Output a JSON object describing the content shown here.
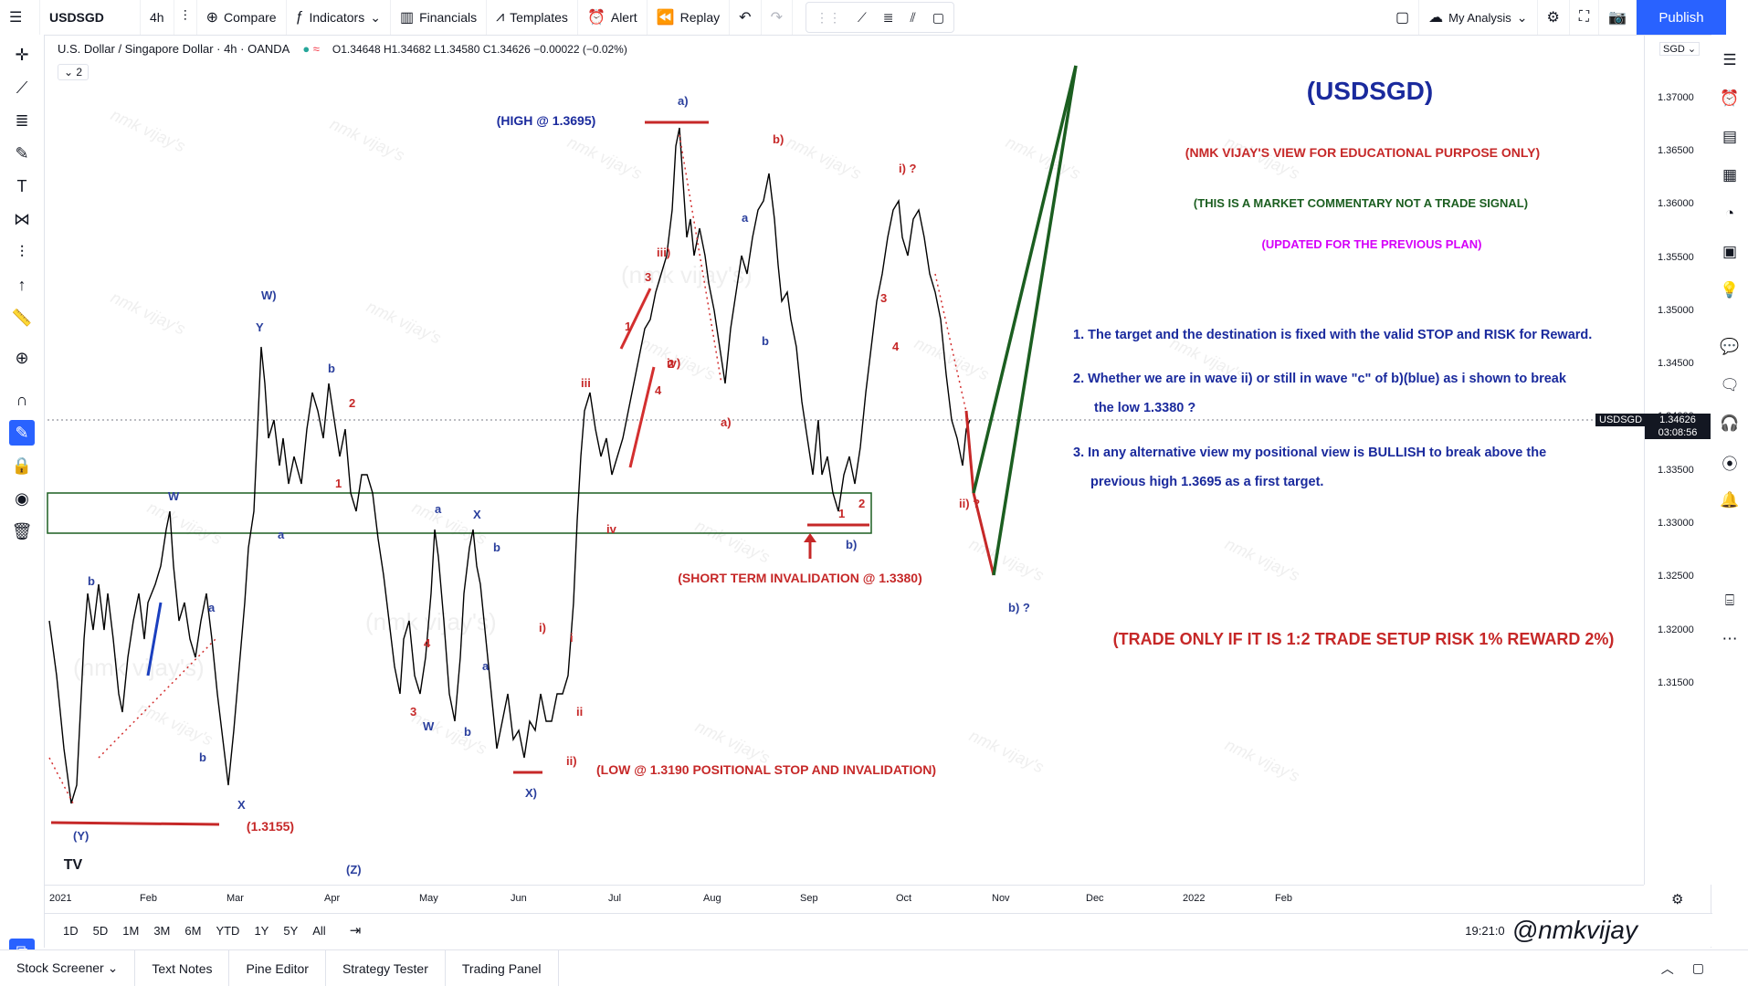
{
  "topbar": {
    "symbol": "USDSGD",
    "interval": "4h",
    "compare": "Compare",
    "indicators": "Indicators",
    "financials": "Financials",
    "templates": "Templates",
    "alert": "Alert",
    "replay": "Replay",
    "my_analysis": "My Analysis",
    "publish": "Publish"
  },
  "legend": {
    "title": "U.S. Dollar / Singapore Dollar · 4h · OANDA",
    "ohlc": "O1.34648 H1.34682 L1.34580 C1.34626 −0.00022 (−0.02%)",
    "collapse": "2"
  },
  "price_axis": {
    "currency": "SGD",
    "ticks": [
      "1.37000",
      "1.36500",
      "1.36000",
      "1.35500",
      "1.35000",
      "1.34500",
      "1.34000",
      "1.33500",
      "1.33000",
      "1.32500",
      "1.32000",
      "1.31500"
    ],
    "current_price": "1.34626",
    "countdown": "03:08:56",
    "symbol_tag": "USDSGD"
  },
  "time_axis": {
    "ticks": [
      "2021",
      "Feb",
      "Mar",
      "Apr",
      "May",
      "Jun",
      "Jul",
      "Aug",
      "Sep",
      "Oct",
      "Nov",
      "Dec",
      "2022",
      "Feb"
    ]
  },
  "bottombar": {
    "ranges": [
      "1D",
      "5D",
      "1M",
      "3M",
      "6M",
      "YTD",
      "1Y",
      "5Y",
      "All"
    ],
    "clock": "19:21:0",
    "watermark": "@nmkvijay"
  },
  "footer": {
    "tabs": [
      "Stock Screener",
      "Text Notes",
      "Pine Editor",
      "Strategy Tester",
      "Trading Panel"
    ]
  },
  "annotations": {
    "title": "(USDSGD)",
    "view": "(NMK VIJAY'S VIEW FOR EDUCATIONAL PURPOSE ONLY)",
    "commentary": "(THIS IS A MARKET COMMENTARY NOT A TRADE SIGNAL)",
    "updated": "(UPDATED FOR THE PREVIOUS PLAN)",
    "p1": "1. The target and the destination is fixed with the valid STOP and RISK for Reward.",
    "p2a": "2. Whether we are in wave ii) or still in wave \"c\" of b)(blue) as i shown to break",
    "p2b": "the low 1.3380 ?",
    "p3a": "3. In any alternative view my positional view is BULLISH to break above the",
    "p3b": "previous high 1.3695 as a first target.",
    "trade": "(TRADE ONLY IF IT IS 1:2 TRADE SETUP RISK 1% REWARD 2%)",
    "high": "(HIGH @ 1.3695)",
    "short_inv": "(SHORT TERM INVALIDATION @ 1.3380)",
    "low": "(LOW @ 1.3190 POSITIONAL STOP AND INVALIDATION)",
    "low2": "(1.3155)"
  },
  "wave_labels": [
    {
      "t": "a)",
      "c": "#2a3f9d"
    },
    {
      "t": "b)",
      "c": "#c62828"
    },
    {
      "t": "i) ?",
      "c": "#c62828"
    },
    {
      "t": "W)",
      "c": "#2a3f9d"
    },
    {
      "t": "Y",
      "c": "#2a3f9d"
    },
    {
      "t": "b",
      "c": "#2a3f9d"
    },
    {
      "t": "2",
      "c": "#c62828"
    },
    {
      "t": "1",
      "c": "#c62828"
    },
    {
      "t": "W",
      "c": "#2a3f9d"
    },
    {
      "t": "a",
      "c": "#2a3f9d"
    },
    {
      "t": "b",
      "c": "#2a3f9d"
    },
    {
      "t": "a",
      "c": "#2a3f9d"
    },
    {
      "t": "b",
      "c": "#2a3f9d"
    },
    {
      "t": "X",
      "c": "#2a3f9d"
    },
    {
      "t": "(Y)",
      "c": "#2a3f9d"
    },
    {
      "t": "(Z)",
      "c": "#2a3f9d"
    },
    {
      "t": "a",
      "c": "#2a3f9d"
    },
    {
      "t": "X",
      "c": "#2a3f9d"
    },
    {
      "t": "b",
      "c": "#2a3f9d"
    },
    {
      "t": "a",
      "c": "#2a3f9d"
    },
    {
      "t": "3",
      "c": "#c62828"
    },
    {
      "t": "W",
      "c": "#2a3f9d"
    },
    {
      "t": "b",
      "c": "#2a3f9d"
    },
    {
      "t": "X)",
      "c": "#2a3f9d"
    },
    {
      "t": "i)",
      "c": "#c62828"
    },
    {
      "t": "ii)",
      "c": "#c62828"
    },
    {
      "t": "iii",
      "c": "#c62828"
    },
    {
      "t": "iv",
      "c": "#c62828"
    },
    {
      "t": "1",
      "c": "#c62828"
    },
    {
      "t": "3",
      "c": "#c62828"
    },
    {
      "t": "4",
      "c": "#c62828"
    },
    {
      "t": "2",
      "c": "#c62828"
    },
    {
      "t": "iii)",
      "c": "#c62828"
    },
    {
      "t": "iv)",
      "c": "#c62828"
    },
    {
      "t": "a",
      "c": "#2a3f9d"
    },
    {
      "t": "b",
      "c": "#2a3f9d"
    },
    {
      "t": "a)",
      "c": "#c62828"
    },
    {
      "t": "1",
      "c": "#c62828"
    },
    {
      "t": "2",
      "c": "#c62828"
    },
    {
      "t": "b)",
      "c": "#2a3f9d"
    },
    {
      "t": "3",
      "c": "#c62828"
    },
    {
      "t": "4",
      "c": "#c62828"
    },
    {
      "t": "ii) ?",
      "c": "#c62828"
    },
    {
      "t": "b) ?",
      "c": "#2a3f9d"
    },
    {
      "t": "i",
      "c": "#c62828"
    },
    {
      "t": "ii",
      "c": "#c62828"
    },
    {
      "t": "4",
      "c": "#c62828"
    }
  ],
  "colors": {
    "blue": "#2a3f9d",
    "red": "#c62828",
    "green": "#1b5e20",
    "magenta": "#d500f9",
    "accent": "#2962ff"
  }
}
